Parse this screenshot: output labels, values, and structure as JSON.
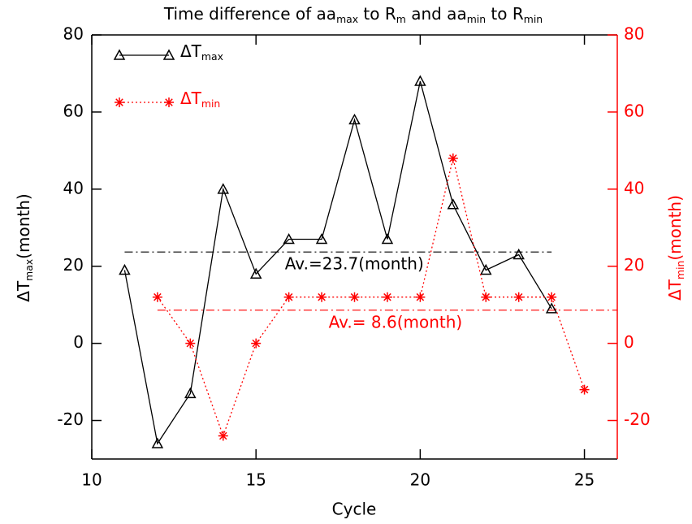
{
  "chart_data": {
    "type": "line",
    "title": [
      "Time difference of aa",
      "max",
      " to R",
      "m",
      " and aa",
      "min",
      " to R",
      "min"
    ],
    "x_label": "Cycle",
    "y_label": [
      "ΔT",
      "max",
      "(month)"
    ],
    "y2_label": [
      "ΔT",
      "min",
      "(month)"
    ],
    "xlim": [
      10,
      26
    ],
    "xticks": [
      10,
      15,
      20,
      25
    ],
    "ylim": [
      -30,
      80
    ],
    "yticks": [
      -20,
      0,
      20,
      40,
      60,
      80
    ],
    "y2lim": [
      -30,
      80
    ],
    "y2ticks": [
      -20,
      0,
      20,
      40,
      60,
      80
    ],
    "legend": "upper left",
    "series": [
      {
        "name": [
          "ΔT",
          "max"
        ],
        "color": "#000000",
        "marker": "triangle",
        "line": "solid",
        "x": [
          11,
          12,
          13,
          14,
          15,
          16,
          17,
          18,
          19,
          20,
          21,
          22,
          23,
          24
        ],
        "values": [
          19,
          -26,
          -13,
          40,
          18,
          27,
          27,
          58,
          27,
          68,
          36,
          19,
          23,
          9
        ]
      },
      {
        "name": [
          "ΔT",
          "min"
        ],
        "color": "#ff0000",
        "marker": "asterisk",
        "line": "dotted",
        "axis": "y2",
        "x": [
          12,
          13,
          14,
          15,
          16,
          17,
          18,
          19,
          20,
          21,
          22,
          23,
          24,
          25
        ],
        "values": [
          12,
          0,
          -24,
          0,
          12,
          12,
          12,
          12,
          12,
          48,
          12,
          12,
          12,
          -12
        ]
      }
    ],
    "averages": [
      {
        "value": 23.7,
        "label": "Av.=23.7(month)",
        "color": "#000000",
        "x": [
          11,
          24
        ],
        "axis": "y"
      },
      {
        "value": 8.6,
        "label": "Av.= 8.6(month)",
        "color": "#ff0000",
        "x": [
          12,
          26
        ],
        "axis": "y2"
      }
    ]
  }
}
